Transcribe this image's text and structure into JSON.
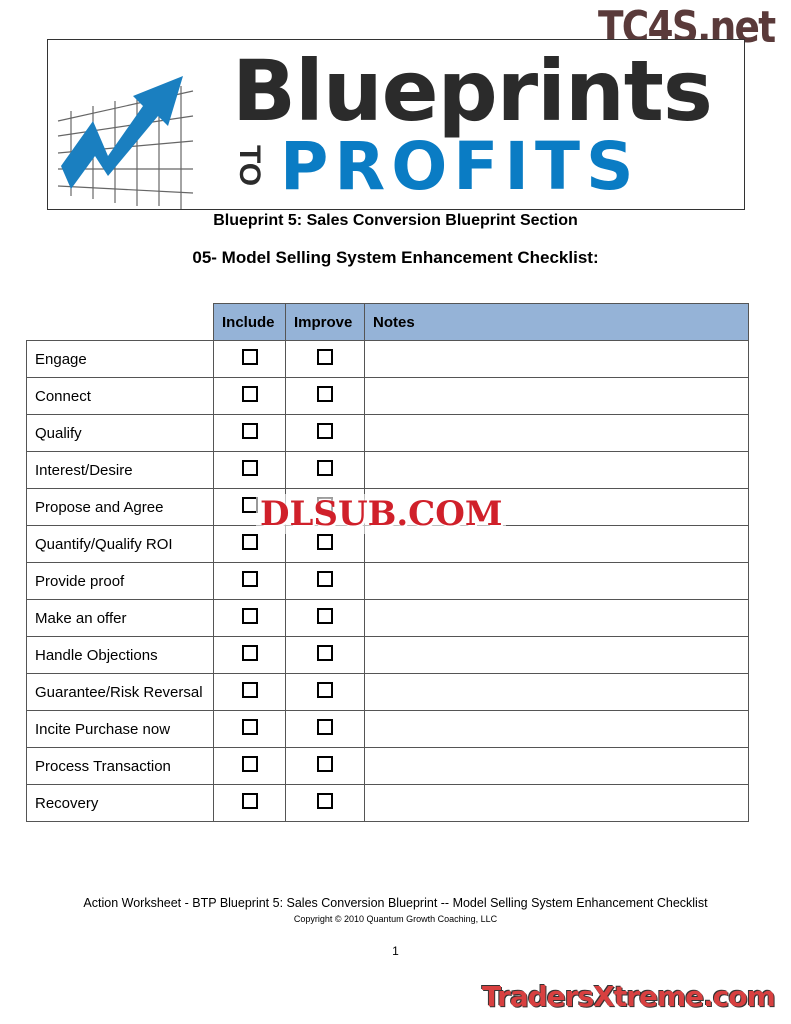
{
  "watermarks": {
    "top": "TC4S.net",
    "middle": "DLSUB.COM",
    "bottom": "TradersXtreme.com"
  },
  "logo": {
    "line1": "Blueprints",
    "to": "TO",
    "line2": "PROFITS",
    "accent": "#0a7cc4"
  },
  "subtitle": "Blueprint 5: Sales Conversion Blueprint Section",
  "title": "05- Model Selling System Enhancement Checklist:",
  "table": {
    "headers": [
      "",
      "Include",
      "Improve",
      "Notes"
    ],
    "header_color": "#95b3d7",
    "rows": [
      "Engage",
      "Connect",
      "Qualify",
      "Interest/Desire",
      "Propose and Agree",
      "Quantify/Qualify ROI",
      "Provide proof",
      "Make an offer",
      "Handle Objections",
      "Guarantee/Risk Reversal",
      "Incite Purchase now",
      "Process Transaction",
      "Recovery"
    ]
  },
  "footer": {
    "line1": "Action Worksheet - BTP Blueprint 5: Sales Conversion Blueprint   --   Model Selling System Enhancement Checklist",
    "copyright": "Copyright © 2010 Quantum Growth Coaching, LLC",
    "page": "1"
  }
}
